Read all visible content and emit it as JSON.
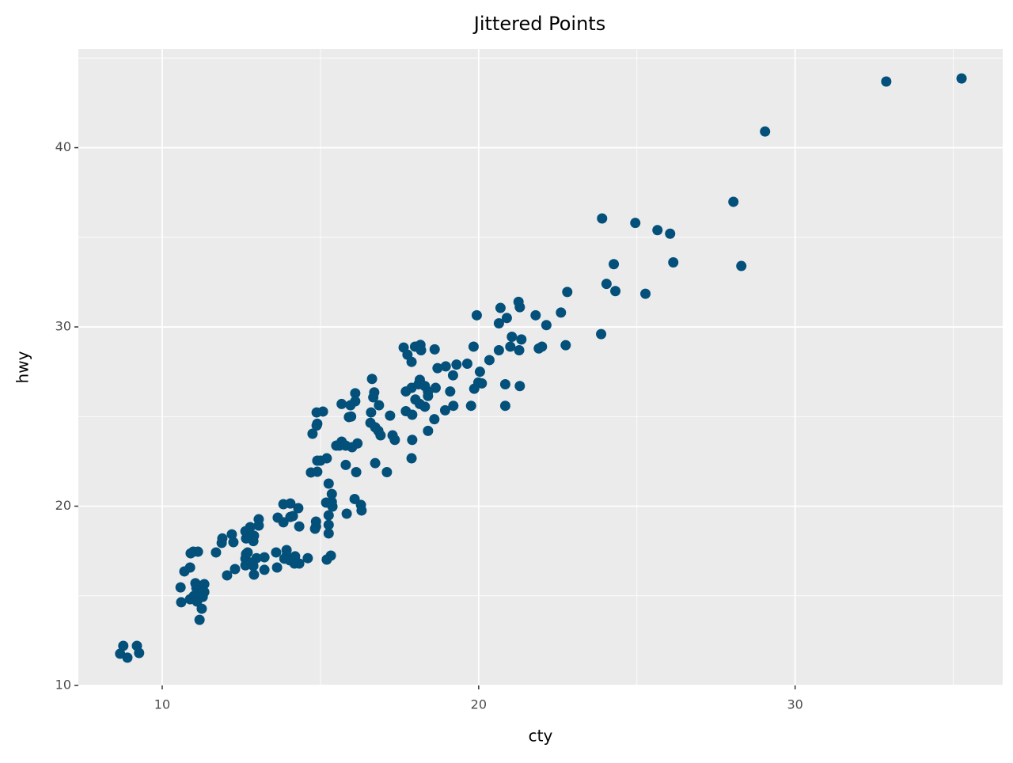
{
  "chart_data": {
    "type": "scatter",
    "title": "Jittered Points",
    "x_label": "cty",
    "y_label": "hwy",
    "color": "#03507a",
    "grid": true,
    "xlim": [
      7.35,
      36.56
    ],
    "ylim": [
      10,
      45.5
    ],
    "xticks": [
      10,
      20,
      30
    ],
    "yticks": [
      10,
      20,
      30,
      40
    ],
    "minor_xticks": [
      15,
      25,
      35
    ],
    "minor_yticks": [
      15,
      25,
      35,
      45
    ],
    "x": [
      35.26,
      32.88,
      29.05,
      28.05,
      28.3,
      23.9,
      24.95,
      25.65,
      26.05,
      24.27,
      26.15,
      24.04,
      24.32,
      25.27,
      22.8,
      22.6,
      22.75,
      23.87,
      19.94,
      20.69,
      20.89,
      21.26,
      21.3,
      20.64,
      21.8,
      22.14,
      21.9,
      22.0,
      19.84,
      21.0,
      20.64,
      21.28,
      21.35,
      21.05,
      20.34,
      20.04,
      19.99,
      20.1,
      20.84,
      21.3,
      20.84,
      19.64,
      19.3,
      19.19,
      18.96,
      18.7,
      19.86,
      19.76,
      19.1,
      19.2,
      18.94,
      18.6,
      18.4,
      18.64,
      18.16,
      17.63,
      17.99,
      17.75,
      18.61,
      18.18,
      17.88,
      18.1,
      17.88,
      18.14,
      18.3,
      18.4,
      17.7,
      18.0,
      18.14,
      18.3,
      18.4,
      17.7,
      17.9,
      17.9,
      17.88,
      16.63,
      16.7,
      16.67,
      16.6,
      16.85,
      16.58,
      16.73,
      16.83,
      16.9,
      17.2,
      17.28,
      17.35,
      16.73,
      17.1,
      16.1,
      16.1,
      15.67,
      15.95,
      15.9,
      15.97,
      16.17,
      15.67,
      15.6,
      15.5,
      15.8,
      16.0,
      15.8,
      16.13,
      16.08,
      16.28,
      16.3,
      15.83,
      14.88,
      15.08,
      14.9,
      14.88,
      14.75,
      14.9,
      15.0,
      15.2,
      14.7,
      14.9,
      15.26,
      15.36,
      15.36,
      15.18,
      15.38,
      15.26,
      15.26,
      15.26,
      14.86,
      14.86,
      14.83,
      15.33,
      15.2,
      13.83,
      14.05,
      14.3,
      13.83,
      14.05,
      14.13,
      13.65,
      14.33,
      13.05,
      13.05,
      12.78,
      12.63,
      12.7,
      12.9,
      12.88,
      12.65,
      13.6,
      13.93,
      13.93,
      14.2,
      14.03,
      14.18,
      14.33,
      14.6,
      13.86,
      13.63,
      13.23,
      13.23,
      12.98,
      12.88,
      12.73,
      12.63,
      12.65,
      12.8,
      12.9,
      12.7,
      12.63,
      12.3,
      12.05,
      12.2,
      11.9,
      11.88,
      12.25,
      11.7,
      10.98,
      11.13,
      10.9,
      10.88,
      10.7,
      10.58,
      10.6,
      10.88,
      11.0,
      11.05,
      11.08,
      11.25,
      11.33,
      11.33,
      11.2,
      11.28,
      11.18,
      11.1,
      11.25,
      11.18,
      8.77,
      9.2,
      8.67,
      8.9,
      9.27
    ],
    "values": [
      43.86,
      43.69,
      40.9,
      36.98,
      33.4,
      36.05,
      35.8,
      35.4,
      35.2,
      33.5,
      33.6,
      32.4,
      32.0,
      31.85,
      31.95,
      30.8,
      28.98,
      29.6,
      30.65,
      31.06,
      30.5,
      31.4,
      31.1,
      30.2,
      30.65,
      30.1,
      28.8,
      28.9,
      28.9,
      28.9,
      28.7,
      28.7,
      29.3,
      29.45,
      28.15,
      27.5,
      26.9,
      26.85,
      26.8,
      26.7,
      25.6,
      27.95,
      27.9,
      27.3,
      27.8,
      27.7,
      26.55,
      25.6,
      26.4,
      25.6,
      25.35,
      24.85,
      24.2,
      26.6,
      29.0,
      28.85,
      28.9,
      28.45,
      28.75,
      28.7,
      28.05,
      26.8,
      26.6,
      27.05,
      26.7,
      26.4,
      26.4,
      25.95,
      25.7,
      25.55,
      26.15,
      25.3,
      25.1,
      23.7,
      22.67,
      27.1,
      26.35,
      26.07,
      25.23,
      25.63,
      24.65,
      24.4,
      24.2,
      23.95,
      25.05,
      23.95,
      23.7,
      22.4,
      21.9,
      26.3,
      25.85,
      25.7,
      25.63,
      24.97,
      25.0,
      23.5,
      23.6,
      23.38,
      23.38,
      23.38,
      23.29,
      22.3,
      21.9,
      20.4,
      20.07,
      19.76,
      19.58,
      25.23,
      25.28,
      24.6,
      24.5,
      24.04,
      22.54,
      22.54,
      22.67,
      21.88,
      21.92,
      21.26,
      20.68,
      20.24,
      20.2,
      19.98,
      19.49,
      18.96,
      18.48,
      19.14,
      18.87,
      18.74,
      17.24,
      17.02,
      20.11,
      20.15,
      19.89,
      19.1,
      19.4,
      19.45,
      19.36,
      18.87,
      19.27,
      18.92,
      18.83,
      18.6,
      18.43,
      18.35,
      18.05,
      18.2,
      17.42,
      17.55,
      17.24,
      17.2,
      16.98,
      16.8,
      16.8,
      17.1,
      17.07,
      16.58,
      17.15,
      16.45,
      17.1,
      16.67,
      16.8,
      17.07,
      17.33,
      16.85,
      16.18,
      17.42,
      16.7,
      16.49,
      16.14,
      18.43,
      18.2,
      17.95,
      17.99,
      17.42,
      17.46,
      17.46,
      17.37,
      16.58,
      16.36,
      15.47,
      14.64,
      14.81,
      14.99,
      15.7,
      15.43,
      15.56,
      15.65,
      15.21,
      15.03,
      14.94,
      14.9,
      14.68,
      14.28,
      13.66,
      12.21,
      12.21,
      11.77,
      11.55,
      11.81
    ]
  }
}
